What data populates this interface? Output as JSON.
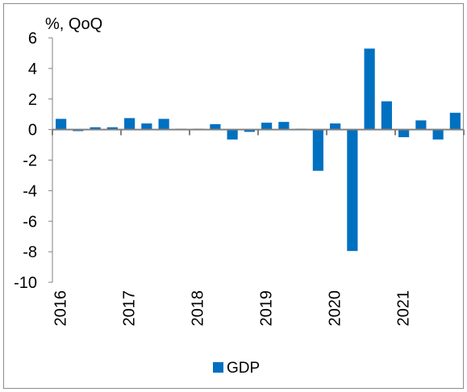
{
  "chart_data": {
    "type": "bar",
    "unit_label": "%, QoQ",
    "x_tick_labels": [
      "2016",
      "2017",
      "2018",
      "2019",
      "2020",
      "2021"
    ],
    "categories": [
      "2016 Q1",
      "2016 Q2",
      "2016 Q3",
      "2016 Q4",
      "2017 Q1",
      "2017 Q2",
      "2017 Q3",
      "2017 Q4",
      "2018 Q1",
      "2018 Q2",
      "2018 Q3",
      "2018 Q4",
      "2019 Q1",
      "2019 Q2",
      "2019 Q3",
      "2019 Q4",
      "2020 Q1",
      "2020 Q2",
      "2020 Q3",
      "2020 Q4",
      "2021 Q1",
      "2021 Q2",
      "2021 Q3",
      "2021 Q4"
    ],
    "series": [
      {
        "name": "GDP",
        "color": "#0070c0",
        "values": [
          0.7,
          -0.1,
          0.15,
          0.15,
          0.75,
          0.4,
          0.7,
          0.0,
          0.05,
          0.35,
          -0.65,
          -0.15,
          0.45,
          0.5,
          0.0,
          -2.7,
          0.4,
          -7.95,
          5.3,
          1.85,
          -0.5,
          0.6,
          -0.65,
          1.1
        ]
      }
    ],
    "y_ticks": [
      6,
      4,
      2,
      0,
      -2,
      -4,
      -6,
      -8,
      -10
    ],
    "ylim": [
      -10,
      6
    ],
    "grid": false,
    "legend": "bottom-center"
  }
}
